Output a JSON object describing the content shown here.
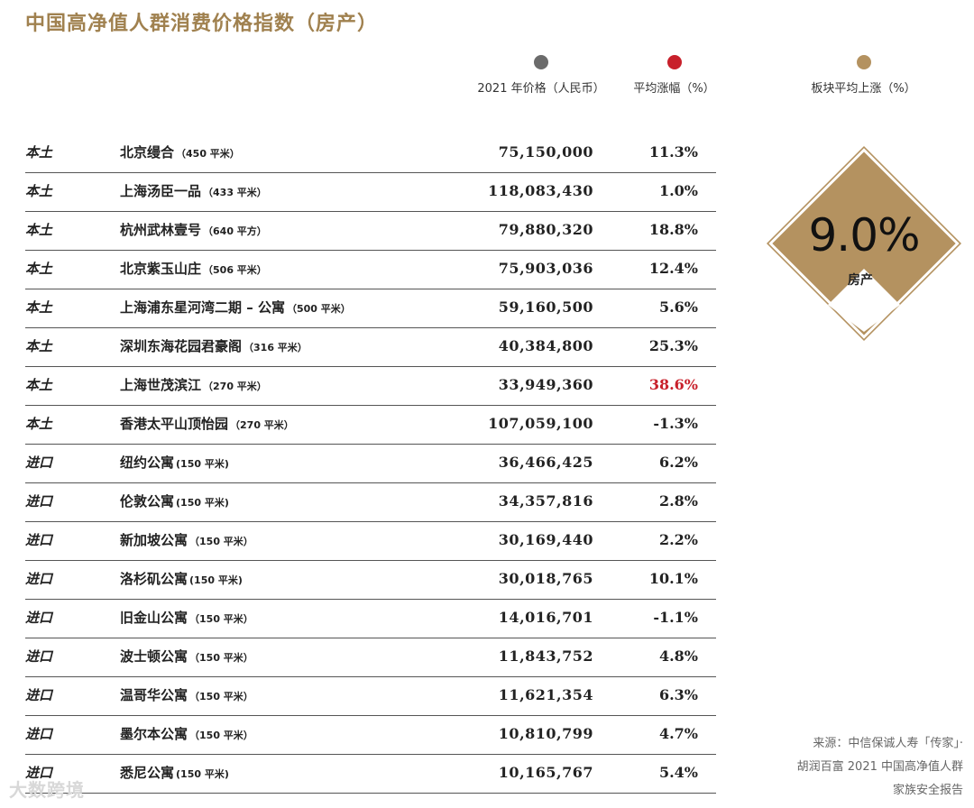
{
  "title": "中国高净值人群消费价格指数（房产）",
  "legend": {
    "price": {
      "label": "2021 年价格（人民币）",
      "color": "#6b6b6b"
    },
    "avg_change": {
      "label": "平均涨幅（%）",
      "color": "#c8202b"
    },
    "sector": {
      "label": "板块平均上涨（%）",
      "color": "#b49260"
    }
  },
  "rows": [
    {
      "category": "本土",
      "name": "北京缦合",
      "size": "（450 平米）",
      "price": "75,150,000",
      "change": "11.3%"
    },
    {
      "category": "本土",
      "name": "上海汤臣一品",
      "size": "（433 平米）",
      "price": "118,083,430",
      "change": "1.0%"
    },
    {
      "category": "本土",
      "name": "杭州武林壹号",
      "size": "（640 平方）",
      "price": "79,880,320",
      "change": "18.8%"
    },
    {
      "category": "本土",
      "name": "北京紫玉山庄",
      "size": "（506 平米）",
      "price": "75,903,036",
      "change": "12.4%"
    },
    {
      "category": "本土",
      "name": "上海浦东星河湾二期 – 公寓",
      "size": "（500 平米）",
      "price": "59,160,500",
      "change": "5.6%"
    },
    {
      "category": "本土",
      "name": "深圳东海花园君豪阁",
      "size": "（316 平米）",
      "price": "40,384,800",
      "change": "25.3%"
    },
    {
      "category": "本土",
      "name": "上海世茂滨江",
      "size": "（270 平米）",
      "price": "33,949,360",
      "change": "38.6%"
    },
    {
      "category": "本土",
      "name": "香港太平山顶怡园",
      "size": "（270 平米）",
      "price": "107,059,100",
      "change": "-1.3%"
    },
    {
      "category": "进口",
      "name": "纽约公寓",
      "size": "(150 平米)",
      "price": "36,466,425",
      "change": "6.2%"
    },
    {
      "category": "进口",
      "name": "伦敦公寓",
      "size": "(150 平米)",
      "price": "34,357,816",
      "change": "2.8%"
    },
    {
      "category": "进口",
      "name": "新加坡公寓",
      "size": "（150 平米）",
      "price": "30,169,440",
      "change": "2.2%"
    },
    {
      "category": "进口",
      "name": "洛杉矶公寓",
      "size": "(150 平米)",
      "price": "30,018,765",
      "change": "10.1%"
    },
    {
      "category": "进口",
      "name": "旧金山公寓",
      "size": "（150 平米）",
      "price": "14,016,701",
      "change": "-1.1%"
    },
    {
      "category": "进口",
      "name": "波士顿公寓",
      "size": "（150 平米）",
      "price": "11,843,752",
      "change": "4.8%"
    },
    {
      "category": "进口",
      "name": "温哥华公寓",
      "size": "（150 平米）",
      "price": "11,621,354",
      "change": "6.3%"
    },
    {
      "category": "进口",
      "name": "墨尔本公寓",
      "size": "（150 平米）",
      "price": "10,810,799",
      "change": "4.7%"
    },
    {
      "category": "进口",
      "name": "悉尼公寓",
      "size": "(150 平米)",
      "price": "10,165,767",
      "change": "5.4%"
    }
  ],
  "highlight_color": "#c8202b",
  "sector": {
    "value": "9.0%",
    "label": "房产",
    "color": "#b49260"
  },
  "source_lines": [
    "来源：中信保诚人寿「传家」·",
    "胡润百富 2021 中国高净值人群",
    "家族安全报告"
  ],
  "watermark": "大数跨境"
}
